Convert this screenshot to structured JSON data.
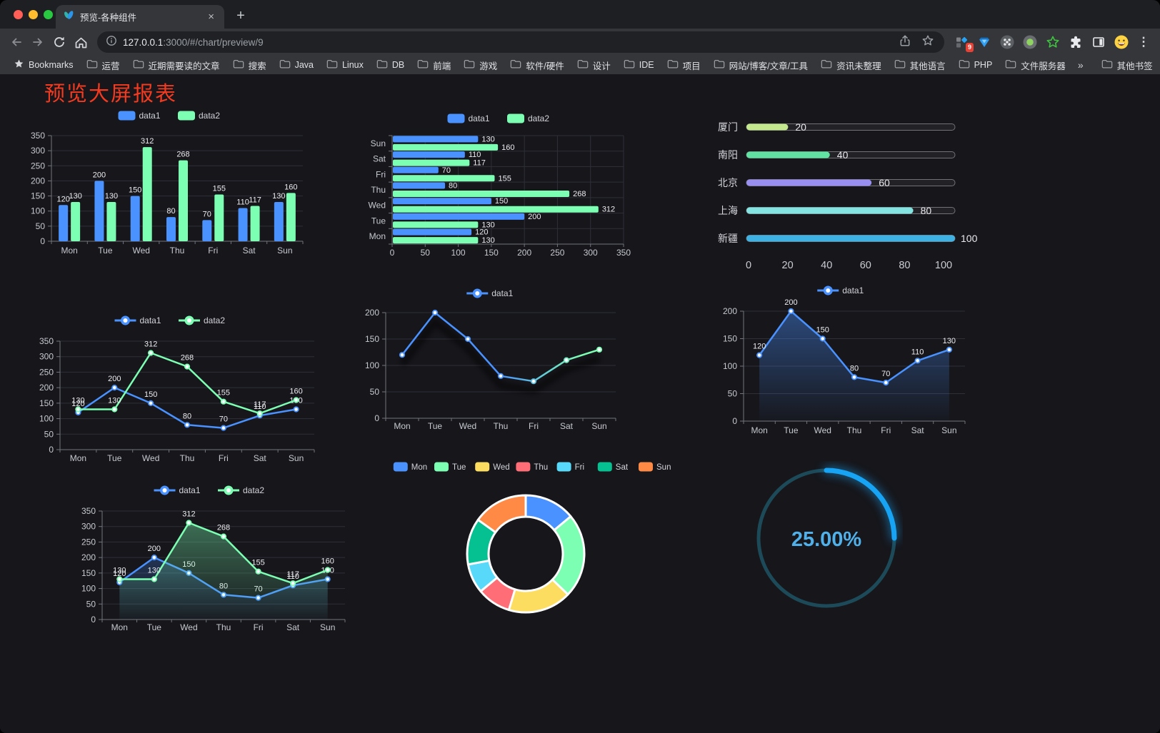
{
  "browser": {
    "tab_title": "预览-各种组件",
    "url_host": "127.0.0.1",
    "url_rest": ":3000/#/chart/preview/9",
    "extension_badge": "9",
    "toolbar_icons": [
      "back-icon",
      "forward-icon",
      "reload-icon",
      "home-icon",
      "site-info-icon",
      "share-icon",
      "bookmark-star-icon",
      "blocks-badge-icon",
      "vue-devtools-icon",
      "command-circle-icon",
      "record-circle-icon",
      "green-star-icon",
      "puzzle-icon",
      "sidebar-icon",
      "emoji-icon",
      "kebab-menu-icon"
    ],
    "bookmarks": [
      {
        "label": "Bookmarks",
        "icon": "star"
      },
      {
        "label": "运营",
        "icon": "folder"
      },
      {
        "label": "近期需要读的文章",
        "icon": "folder"
      },
      {
        "label": "搜索",
        "icon": "folder"
      },
      {
        "label": "Java",
        "icon": "folder"
      },
      {
        "label": "Linux",
        "icon": "folder"
      },
      {
        "label": "DB",
        "icon": "folder"
      },
      {
        "label": "前端",
        "icon": "folder"
      },
      {
        "label": "游戏",
        "icon": "folder"
      },
      {
        "label": "软件/硬件",
        "icon": "folder"
      },
      {
        "label": "设计",
        "icon": "folder"
      },
      {
        "label": "IDE",
        "icon": "folder"
      },
      {
        "label": "项目",
        "icon": "folder"
      },
      {
        "label": "网站/博客/文章/工具",
        "icon": "folder"
      },
      {
        "label": "资讯未整理",
        "icon": "folder"
      },
      {
        "label": "其他语言",
        "icon": "folder"
      },
      {
        "label": "PHP",
        "icon": "folder"
      },
      {
        "label": "文件服务器",
        "icon": "folder"
      },
      {
        "label": "»",
        "icon": "chevron"
      },
      {
        "label": "其他书签",
        "icon": "folder",
        "divider_before": true
      }
    ]
  },
  "page": {
    "title": "预览大屏报表",
    "title_color": "#f43b20"
  },
  "palette": {
    "blue": "#4992ff",
    "green": "#7cffb2",
    "yellow": "#fddd60",
    "red": "#ff6e76",
    "lightblue": "#58d9f9",
    "teal": "#05c091",
    "orange": "#ff8a45"
  },
  "chart_data": [
    {
      "type": "bar",
      "orientation": "vertical",
      "categories": [
        "Mon",
        "Tue",
        "Wed",
        "Thu",
        "Fri",
        "Sat",
        "Sun"
      ],
      "series": [
        {
          "name": "data1",
          "color": "#4992ff",
          "values": [
            120,
            200,
            150,
            80,
            70,
            110,
            130
          ]
        },
        {
          "name": "data2",
          "color": "#7cffb2",
          "values": [
            130,
            130,
            312,
            268,
            155,
            117,
            160
          ]
        }
      ],
      "ylim": [
        0,
        350
      ],
      "yticks": [
        0,
        50,
        100,
        150,
        200,
        250,
        300,
        350
      ],
      "show_value_labels": true
    },
    {
      "type": "bar",
      "orientation": "horizontal",
      "categories": [
        "Mon",
        "Tue",
        "Wed",
        "Thu",
        "Fri",
        "Sat",
        "Sun"
      ],
      "display_order_top_to_bottom": [
        "Sun",
        "Sat",
        "Fri",
        "Thu",
        "Wed",
        "Tue",
        "Mon"
      ],
      "series": [
        {
          "name": "data1",
          "color": "#4992ff",
          "values": [
            120,
            200,
            150,
            80,
            70,
            110,
            130
          ]
        },
        {
          "name": "data2",
          "color": "#7cffb2",
          "values": [
            130,
            130,
            312,
            268,
            155,
            117,
            160
          ]
        }
      ],
      "xlim": [
        0,
        350
      ],
      "xticks": [
        0,
        50,
        100,
        150,
        200,
        250,
        300,
        350
      ],
      "show_value_labels": true
    },
    {
      "type": "progress",
      "xlim": [
        0,
        100
      ],
      "xticks": [
        0,
        20,
        40,
        60,
        80,
        100
      ],
      "rows": [
        {
          "label": "厦门",
          "value": 20,
          "color": "#c3e88d"
        },
        {
          "label": "南阳",
          "value": 40,
          "color": "#5fe2a2"
        },
        {
          "label": "北京",
          "value": 60,
          "color": "#988ff1"
        },
        {
          "label": "上海",
          "value": 80,
          "color": "#84e4e2"
        },
        {
          "label": "新疆",
          "value": 100,
          "color": "#3fb1e3"
        }
      ]
    },
    {
      "type": "line",
      "categories": [
        "Mon",
        "Tue",
        "Wed",
        "Thu",
        "Fri",
        "Sat",
        "Sun"
      ],
      "series": [
        {
          "name": "data1",
          "color": "#4992ff",
          "values": [
            120,
            200,
            150,
            80,
            70,
            110,
            130
          ]
        },
        {
          "name": "data2",
          "color": "#7cffb2",
          "values": [
            130,
            130,
            312,
            268,
            155,
            117,
            160
          ]
        }
      ],
      "ylim": [
        0,
        350
      ],
      "yticks": [
        0,
        50,
        100,
        150,
        200,
        250,
        300,
        350
      ],
      "show_value_labels": true
    },
    {
      "type": "line",
      "gradient_line": true,
      "shadow": true,
      "categories": [
        "Mon",
        "Tue",
        "Wed",
        "Thu",
        "Fri",
        "Sat",
        "Sun"
      ],
      "series": [
        {
          "name": "data1",
          "color": "#4992ff",
          "color2": "#7cffb2",
          "values": [
            120,
            200,
            150,
            80,
            70,
            110,
            130
          ]
        }
      ],
      "ylim": [
        0,
        200
      ],
      "yticks": [
        0,
        50,
        100,
        150,
        200
      ],
      "show_value_labels": false
    },
    {
      "type": "line",
      "area": true,
      "categories": [
        "Mon",
        "Tue",
        "Wed",
        "Thu",
        "Fri",
        "Sat",
        "Sun"
      ],
      "series": [
        {
          "name": "data1",
          "color": "#4992ff",
          "values": [
            120,
            200,
            150,
            80,
            70,
            110,
            130
          ]
        }
      ],
      "ylim": [
        0,
        200
      ],
      "yticks": [
        0,
        50,
        100,
        150,
        200
      ],
      "show_value_labels": true
    },
    {
      "type": "line",
      "area": true,
      "categories": [
        "Mon",
        "Tue",
        "Wed",
        "Thu",
        "Fri",
        "Sat",
        "Sun"
      ],
      "series": [
        {
          "name": "data1",
          "color": "#4992ff",
          "values": [
            120,
            200,
            150,
            80,
            70,
            110,
            130
          ]
        },
        {
          "name": "data2",
          "color": "#7cffb2",
          "values": [
            130,
            130,
            312,
            268,
            155,
            117,
            160
          ]
        }
      ],
      "ylim": [
        0,
        350
      ],
      "yticks": [
        0,
        50,
        100,
        150,
        200,
        250,
        300,
        350
      ],
      "show_value_labels": true
    },
    {
      "type": "pie",
      "donut": true,
      "categories": [
        "Mon",
        "Tue",
        "Wed",
        "Thu",
        "Fri",
        "Sat",
        "Sun"
      ],
      "values": [
        120,
        200,
        150,
        80,
        70,
        110,
        130
      ],
      "colors": [
        "#4992ff",
        "#7cffb2",
        "#fddd60",
        "#ff6e76",
        "#58d9f9",
        "#05c091",
        "#ff8a45"
      ],
      "legend_position": "top"
    },
    {
      "type": "gauge",
      "percent": 25,
      "value_label": "25.00%",
      "arc_color": "#18a4f4",
      "track_color": "#1d4a59",
      "text_color": "#4fb0ea"
    }
  ]
}
